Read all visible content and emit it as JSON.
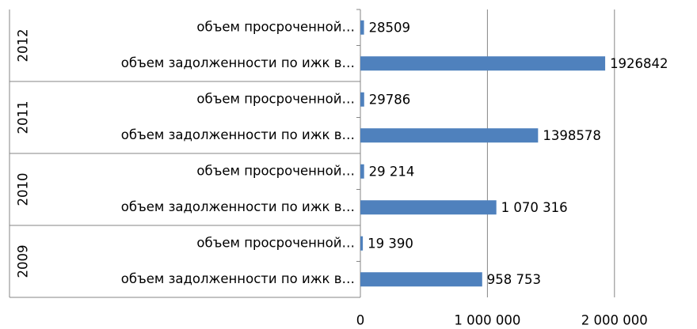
{
  "chart_data": {
    "type": "bar",
    "orientation": "horizontal",
    "group_labels": [
      "2012",
      "2011",
      "2010",
      "2009"
    ],
    "categories": [
      "объем просроченной…",
      "объем задолженности по ижк в…",
      "объем просроченной…",
      "объем задолженности по ижк в…",
      "объем просроченной…",
      "объем задолженности по ижк в…",
      "объем просроченной…",
      "объем задолженности по ижк в…"
    ],
    "values": [
      28509,
      1926842,
      29786,
      1398578,
      29214,
      1070316,
      19390,
      958753
    ],
    "value_labels": [
      "28509",
      "1926842",
      "29786",
      "1398578",
      "29 214",
      "1 070 316",
      "19 390",
      "958 753"
    ],
    "color": "#4f81bd",
    "xlim": [
      0,
      2500000
    ],
    "xticks": [
      0,
      {
        "value": 1000000,
        "label": "1 000 000"
      },
      {
        "value": 2000000,
        "label": "2 000 000"
      }
    ],
    "grid": true
  }
}
